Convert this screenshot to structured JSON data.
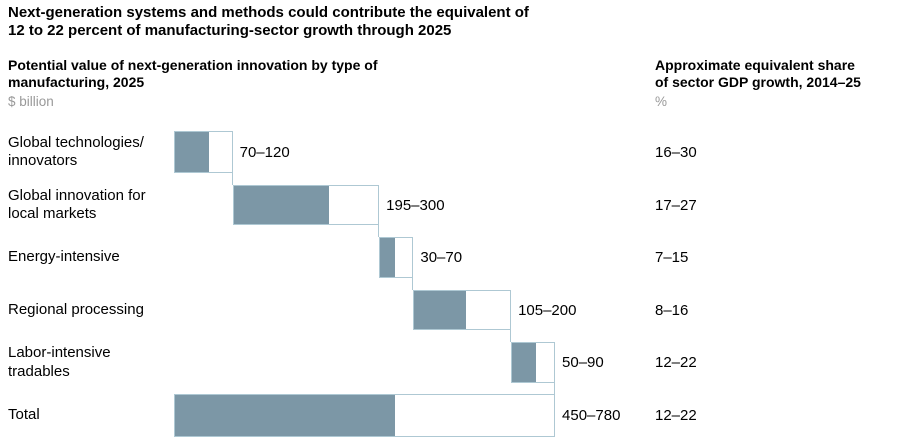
{
  "title": "Next-generation systems and methods could contribute the equivalent of\n12 to 22 percent of manufacturing-sector growth through 2025",
  "left_panel": {
    "heading": "Potential value of next-generation innovation by type of\nmanufacturing, 2025",
    "unit": "$ billion"
  },
  "right_panel": {
    "heading": "Approximate equivalent share\nof sector GDP growth, 2014–25",
    "unit": "%"
  },
  "colors": {
    "bar_fill": "#7c97a6",
    "bar_border": "#aec8d3",
    "muted_text": "#999999",
    "text": "#000000"
  },
  "chart_data": {
    "type": "bar",
    "subtype": "horizontal-waterfall-range",
    "title": "Potential value of next-generation innovation by type of manufacturing, 2025",
    "value_unit": "$ billion",
    "secondary_unit": "%",
    "xlim": [
      0,
      780
    ],
    "axis_hidden": true,
    "grid": false,
    "legend": false,
    "categories": [
      "Global technologies/ innovators",
      "Global innovation for local markets",
      "Energy-intensive",
      "Regional processing",
      "Labor-intensive tradables",
      "Total"
    ],
    "rows": [
      {
        "label": "Global technologies/\ninnovators",
        "low": 70,
        "high": 120,
        "range_label": "70–120",
        "gdp_share": "16–30",
        "is_total": false
      },
      {
        "label": "Global innovation for\nlocal markets",
        "low": 195,
        "high": 300,
        "range_label": "195–300",
        "gdp_share": "17–27",
        "is_total": false
      },
      {
        "label": "Energy-intensive",
        "low": 30,
        "high": 70,
        "range_label": "30–70",
        "gdp_share": "7–15",
        "is_total": false
      },
      {
        "label": "Regional processing",
        "low": 105,
        "high": 200,
        "range_label": "105–200",
        "gdp_share": "8–16",
        "is_total": false
      },
      {
        "label": "Labor-intensive\ntradables",
        "low": 50,
        "high": 90,
        "range_label": "50–90",
        "gdp_share": "12–22",
        "is_total": false
      },
      {
        "label": "Total",
        "low": 450,
        "high": 780,
        "range_label": "450–780",
        "gdp_share": "12–22",
        "is_total": true
      }
    ]
  }
}
